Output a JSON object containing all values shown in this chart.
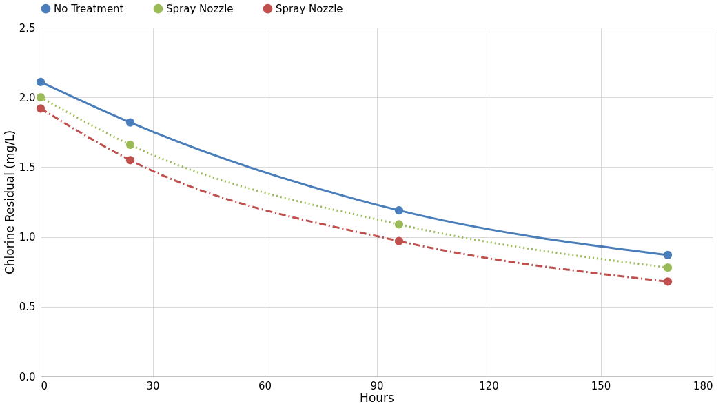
{
  "chart_data": {
    "type": "line",
    "xlabel": "Hours",
    "ylabel": "Chlorine Residual (mg/L)",
    "x": [
      0,
      24,
      96,
      168
    ],
    "series": [
      {
        "name": "No Treatment",
        "color": "#4a7ebb",
        "line_style": "solid",
        "values": [
          2.11,
          1.82,
          1.19,
          0.87
        ]
      },
      {
        "name": "Spray Nozzle",
        "color": "#9bbb59",
        "line_style": "dotted",
        "values": [
          2.0,
          1.66,
          1.09,
          0.78
        ]
      },
      {
        "name": "Spray Nozzle",
        "color": "#c0504d",
        "line_style": "dashed",
        "values": [
          1.92,
          1.55,
          0.97,
          0.68
        ]
      }
    ],
    "xlim": [
      0,
      180
    ],
    "xticks": [
      0,
      30,
      60,
      90,
      120,
      150,
      180
    ],
    "ylim": [
      0,
      2.5
    ],
    "yticks": [
      {
        "value": 0,
        "label": "0.0"
      },
      {
        "value": 0.5,
        "label": "0.5"
      },
      {
        "value": 1,
        "label": "1.0"
      },
      {
        "value": 1.5,
        "label": "1.5"
      },
      {
        "value": 2,
        "label": "2.0"
      },
      {
        "value": 2.5,
        "label": "2.5"
      }
    ],
    "grid": true,
    "legend": "top",
    "marker": "circle"
  }
}
